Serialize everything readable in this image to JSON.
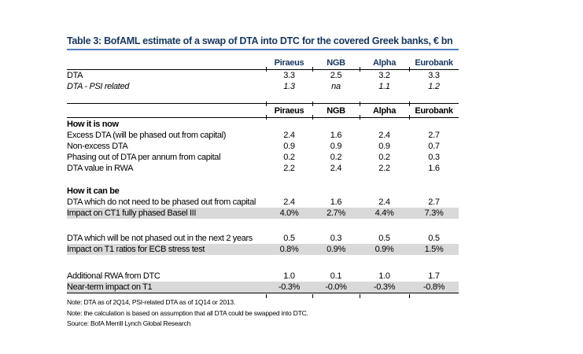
{
  "title": "Table 3: BofAML estimate of a swap of DTA into DTC for the covered Greek banks, € bn",
  "columns": [
    "Piraeus",
    "NGB",
    "Alpha",
    "Eurobank"
  ],
  "intro_rows": [
    {
      "label": "DTA",
      "v": [
        "3.3",
        "2.5",
        "3.2",
        "3.3"
      ]
    },
    {
      "label": "DTA - PSI related",
      "v": [
        "1.3",
        "na",
        "1.1",
        "1.2"
      ]
    }
  ],
  "section_now": {
    "heading": "How it is now",
    "rows": [
      {
        "label": "Excess DTA (will be phased out from capital)",
        "v": [
          "2.4",
          "1.6",
          "2.4",
          "2.7"
        ]
      },
      {
        "label": "Non-excess DTA",
        "v": [
          "0.9",
          "0.9",
          "0.9",
          "0.7"
        ]
      },
      {
        "label": "Phasing out of DTA per annum from capital",
        "v": [
          "0.2",
          "0.2",
          "0.2",
          "0.3"
        ]
      },
      {
        "label": "DTA value in RWA",
        "v": [
          "2.2",
          "2.4",
          "2.2",
          "1.6"
        ]
      }
    ]
  },
  "section_can": {
    "heading": "How it can be",
    "rows": [
      {
        "label": "DTA which do not need to be phased out from capital",
        "v": [
          "2.4",
          "1.6",
          "2.4",
          "2.7"
        ]
      },
      {
        "label": "Impact on CT1 fully phased Basel III",
        "v": [
          "4.0%",
          "2.7%",
          "4.4%",
          "7.3%"
        ]
      },
      {
        "label": "DTA which will be not phased out in the next 2 years",
        "v": [
          "0.5",
          "0.3",
          "0.5",
          "0.5"
        ]
      },
      {
        "label": "Impact on T1 ratios for ECB stress test",
        "v": [
          "0.8%",
          "0.9%",
          "0.9%",
          "1.5%"
        ]
      },
      {
        "label": "Additional RWA from DTC",
        "v": [
          "1.0",
          "0.1",
          "1.0",
          "1.7"
        ]
      },
      {
        "label": "Near-term impact on T1",
        "v": [
          "-0.3%",
          "-0.0%",
          "-0.3%",
          "-0.8%"
        ]
      }
    ]
  },
  "notes": [
    "Note: DTA as of 2Q14, PSI-related DTA as of 1Q14 or 2013.",
    "Note: the calculation is based on assumption that all DTA could be swapped into DTC.",
    "Source: BofA Merrill Lynch Global Research"
  ],
  "colors": {
    "title_navy": "#17375D",
    "rule_blue": "#4F81BD",
    "row_shade": "#D9D9D9",
    "line_black": "#000000"
  }
}
